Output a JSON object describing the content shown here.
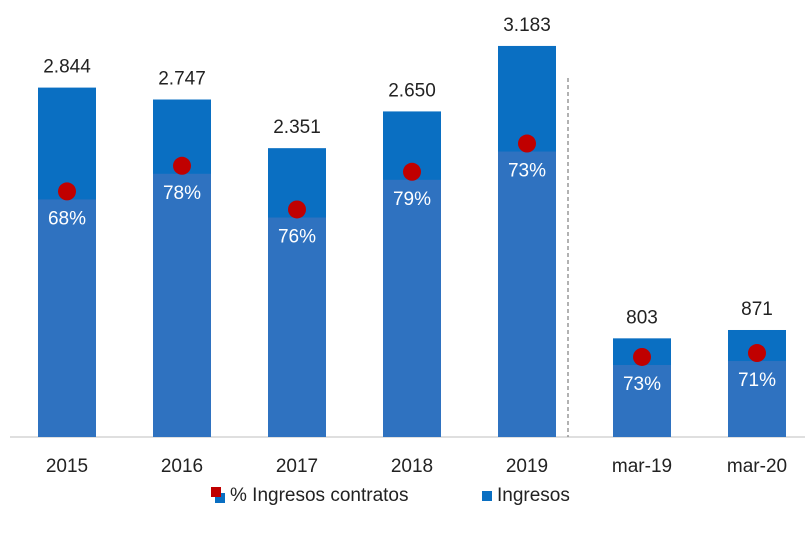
{
  "chart_data": {
    "type": "bar",
    "categories": [
      "2015",
      "2016",
      "2017",
      "2018",
      "2019",
      "mar-19",
      "mar-20"
    ],
    "series": [
      {
        "name": "% Ingresos contratos",
        "color": "#c00000",
        "segment_color": "#2f72c0",
        "values": [
          68,
          78,
          76,
          79,
          73,
          73,
          71
        ],
        "value_labels": [
          "68%",
          "78%",
          "76%",
          "79%",
          "73%",
          "73%",
          "71%"
        ]
      },
      {
        "name": "Ingresos",
        "color": "#0a6fc2",
        "values": [
          2844,
          2747,
          2351,
          2650,
          3183,
          803,
          871
        ],
        "value_labels": [
          "2.844",
          "2.747",
          "2.351",
          "2.650",
          "3.183",
          "803",
          "871"
        ]
      }
    ],
    "ylim": [
      0,
      3500
    ],
    "legend": "bottom"
  }
}
